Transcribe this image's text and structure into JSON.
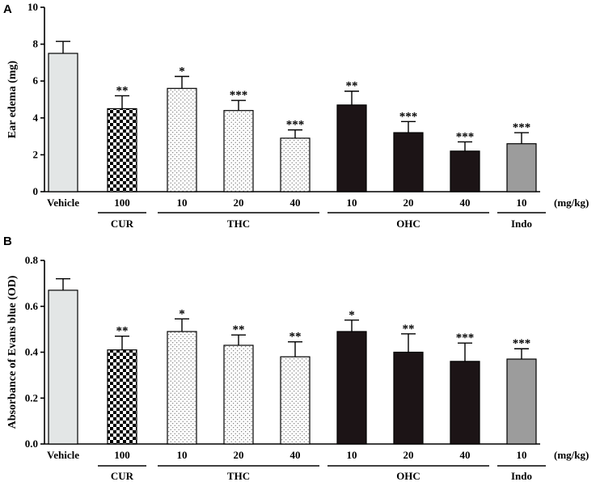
{
  "chart_data": [
    {
      "type": "bar",
      "panel": "A",
      "ylabel": "Ear edema (mg)",
      "ylim": [
        0,
        10
      ],
      "yticks": [
        "0",
        "2",
        "4",
        "6",
        "8",
        "10"
      ],
      "categories": [
        "Vehicle",
        "100",
        "10",
        "20",
        "40",
        "10",
        "20",
        "40",
        "10"
      ],
      "values": [
        7.5,
        4.5,
        5.6,
        4.4,
        2.9,
        4.7,
        3.2,
        2.2,
        2.6
      ],
      "errors": [
        0.65,
        0.7,
        0.65,
        0.55,
        0.45,
        0.75,
        0.6,
        0.5,
        0.6
      ],
      "significance": [
        "",
        "**",
        "*",
        "***",
        "***",
        "**",
        "***",
        "***",
        "***"
      ],
      "unit_label": "(mg/kg)",
      "groups": [
        {
          "label": "CUR",
          "from": 1,
          "to": 1
        },
        {
          "label": "THC",
          "from": 2,
          "to": 4
        },
        {
          "label": "OHC",
          "from": 5,
          "to": 7
        },
        {
          "label": "Indo",
          "from": 8,
          "to": 8
        }
      ]
    },
    {
      "type": "bar",
      "panel": "B",
      "ylabel": "Absorbance of Evans blue (OD)",
      "ylim": [
        0,
        0.8
      ],
      "yticks": [
        "0.0",
        "0.2",
        "0.4",
        "0.6",
        "0.8"
      ],
      "categories": [
        "Vehicle",
        "100",
        "10",
        "20",
        "40",
        "10",
        "20",
        "40",
        "10"
      ],
      "values": [
        0.67,
        0.41,
        0.49,
        0.43,
        0.38,
        0.49,
        0.4,
        0.36,
        0.37
      ],
      "errors": [
        0.05,
        0.06,
        0.055,
        0.045,
        0.065,
        0.05,
        0.08,
        0.08,
        0.045
      ],
      "significance": [
        "",
        "**",
        "*",
        "**",
        "**",
        "*",
        "**",
        "***",
        "***"
      ],
      "unit_label": "(mg/kg)",
      "groups": [
        {
          "label": "CUR",
          "from": 1,
          "to": 1
        },
        {
          "label": "THC",
          "from": 2,
          "to": 4
        },
        {
          "label": "OHC",
          "from": 5,
          "to": 7
        },
        {
          "label": "Indo",
          "from": 8,
          "to": 8
        }
      ]
    }
  ],
  "bar_fills": [
    "light-gray",
    "checker",
    "dots",
    "dots",
    "dots",
    "black",
    "black",
    "black",
    "gray"
  ],
  "colors": {
    "light_gray": "#e3e6e6",
    "gray": "#9c9c9c",
    "black": "#1c1416",
    "axis": "#000000"
  }
}
